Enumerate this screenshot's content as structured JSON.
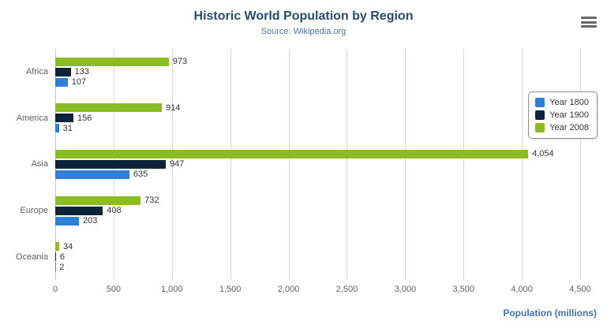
{
  "chart_data": {
    "type": "bar",
    "orientation": "horizontal",
    "title": "Historic World Population by Region",
    "subtitle": "Source: Wikipedia.org",
    "categories": [
      "Africa",
      "America",
      "Asia",
      "Europe",
      "Oceania"
    ],
    "series": [
      {
        "name": "Year 1800",
        "color": "#2f7ed8",
        "values": [
          107,
          31,
          635,
          203,
          2
        ]
      },
      {
        "name": "Year 1900",
        "color": "#0d233a",
        "values": [
          133,
          156,
          947,
          408,
          6
        ]
      },
      {
        "name": "Year 2008",
        "color": "#8bbc21",
        "values": [
          973,
          914,
          4054,
          732,
          34
        ]
      }
    ],
    "bar_order_top_to_bottom": [
      "Year 2008",
      "Year 1900",
      "Year 1800"
    ],
    "data_labels": true,
    "xlabel": "Population (millions)",
    "xlim": [
      0,
      4500
    ],
    "x_ticks": [
      "0",
      "500",
      "1,000",
      "1,500",
      "2,000",
      "2,500",
      "3,000",
      "3,500",
      "4,000",
      "4,500"
    ],
    "grid": true,
    "legend": {
      "position": "right",
      "items": [
        "Year 1800",
        "Year 1900",
        "Year 2008"
      ]
    }
  },
  "menu": {
    "icon": "hamburger-icon"
  }
}
